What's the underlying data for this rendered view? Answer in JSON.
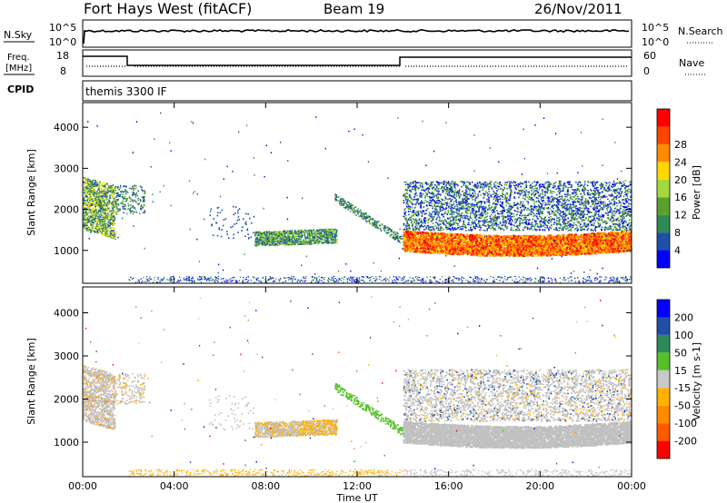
{
  "header": {
    "station": "Fort Hays West (fitACF)",
    "beam": "Beam 19",
    "date": "26/Nov/2011"
  },
  "top_panel": {
    "left_label": "N.Sky",
    "right_label": "N.Search",
    "ticks_left": [
      "10^5",
      "10^0"
    ],
    "ticks_right": [
      "10^5",
      "10^0"
    ]
  },
  "freq_panel": {
    "left_label_line1": "Freq.",
    "left_label_line2": "[MHz]",
    "right_label": "Nave",
    "ticks_left": [
      "18",
      "8"
    ],
    "ticks_right": [
      "60",
      "0"
    ],
    "cpid_label": "CPID",
    "cpid_value": "themis 3300 IF"
  },
  "colors": {
    "power": [
      "#0000ff",
      "#1f4fa8",
      "#2e8b57",
      "#5aa02c",
      "#a3d93a",
      "#ffd700",
      "#ff8c00",
      "#ff4500",
      "#ff0000"
    ],
    "velocity": [
      "#ff0000",
      "#ff5a00",
      "#ff8c00",
      "#ffb000",
      "#c8c8c8",
      "#56c02a",
      "#2e8b57",
      "#1f4fa8",
      "#0000ff"
    ],
    "gray": "#c0c0c0"
  },
  "chart_data": [
    {
      "type": "heatmap",
      "name": "power",
      "xlabel": "",
      "ylabel": "Slant Range [km]",
      "xlim": [
        0,
        24
      ],
      "ylim": [
        200,
        4600
      ],
      "ytick_labels": [
        "1000",
        "2000",
        "3000",
        "4000"
      ],
      "colorbar_label": "Power [dB]",
      "colorbar_ticks": [
        "4",
        "8",
        "12",
        "16",
        "20",
        "24",
        "28"
      ],
      "regions": [
        {
          "t0": 0.0,
          "t1": 1.4,
          "r0": 1500,
          "r1": 2800,
          "level": "mixed"
        },
        {
          "t0": 7.5,
          "t1": 11.0,
          "r0": 1100,
          "r1": 1500,
          "level": "low"
        },
        {
          "t0": 14.0,
          "t1": 24.0,
          "r0": 1000,
          "r1": 1500,
          "level": "high"
        },
        {
          "t0": 14.0,
          "t1": 24.0,
          "r0": 1500,
          "r1": 2700,
          "level": "low"
        }
      ]
    },
    {
      "type": "heatmap",
      "name": "velocity",
      "xlabel": "Time UT",
      "ylabel": "Slant Range [km]",
      "xlim": [
        0,
        24
      ],
      "ylim": [
        200,
        4600
      ],
      "xtick_labels": [
        "00:00",
        "04:00",
        "08:00",
        "12:00",
        "16:00",
        "20:00",
        "00:00"
      ],
      "ytick_labels": [
        "1000",
        "2000",
        "3000",
        "4000"
      ],
      "colorbar_label": "Velocity [m s-1]",
      "colorbar_ticks": [
        "200",
        "100",
        "50",
        "15",
        "-15",
        "-50",
        "-100",
        "-200"
      ]
    }
  ]
}
